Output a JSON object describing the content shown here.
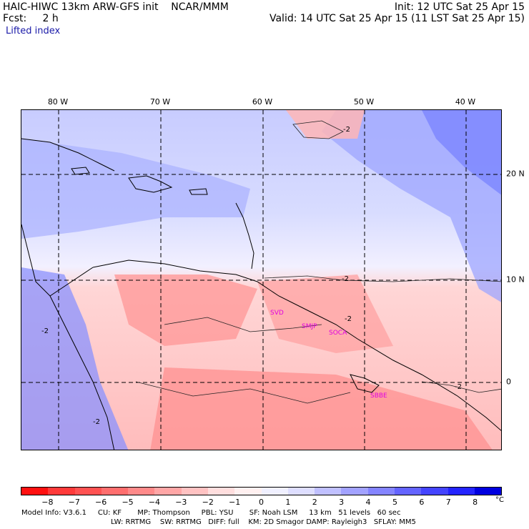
{
  "header": {
    "model_line": "HAIC-HIWC 13km ARW-GFS init    NCAR/MMM",
    "init_line": "Init: 12 UTC Sat 25 Apr 15",
    "fcst_line": "Fcst:     2 h",
    "valid_line": "Valid: 14 UTC Sat 25 Apr 15 (11 LST Sat 25 Apr 15)",
    "field_line": "Lifted index"
  },
  "map": {
    "lon_labels": [
      "80 W",
      "70 W",
      "60 W",
      "50 W",
      "40 W"
    ],
    "lat_labels": [
      "20 N",
      "10 N",
      "0"
    ],
    "cities": [
      "SVD",
      "SMJP",
      "SOCA",
      "SBBE"
    ],
    "contour_label": "-2"
  },
  "colorbar": {
    "ticks": [
      "−8",
      "−7",
      "−6",
      "−5",
      "−4",
      "−3",
      "−2",
      "−1",
      "0",
      "1",
      "2",
      "3",
      "4",
      "5",
      "6",
      "7",
      "8"
    ],
    "unit": "°C",
    "colors": [
      "#ff1010",
      "#ff3a3a",
      "#ff5252",
      "#ff6e6e",
      "#ff8a8a",
      "#ffa6a6",
      "#ffc2c2",
      "#ffdede",
      "#fff0f0",
      "#f0f0ff",
      "#dedeff",
      "#c0c0ff",
      "#a2a2ff",
      "#8484ff",
      "#6464ff",
      "#4444ff",
      "#2424ff",
      "#0000e0"
    ]
  },
  "footer": {
    "line1": "Model Info: V3.6.1     CU: KF       MP: Thompson     PBL: YSU       SF: Noah LSM     13 km   51 levels   60 sec",
    "line2": "LW: RRTMG    SW: RRTMG   DIFF: full    KM: 2D Smagor DAMP: Rayleigh3   SFLAY: MM5"
  }
}
